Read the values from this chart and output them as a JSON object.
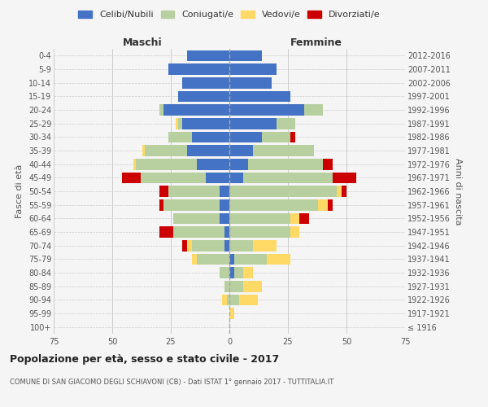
{
  "age_groups": [
    "100+",
    "95-99",
    "90-94",
    "85-89",
    "80-84",
    "75-79",
    "70-74",
    "65-69",
    "60-64",
    "55-59",
    "50-54",
    "45-49",
    "40-44",
    "35-39",
    "30-34",
    "25-29",
    "20-24",
    "15-19",
    "10-14",
    "5-9",
    "0-4"
  ],
  "birth_years": [
    "≤ 1916",
    "1917-1921",
    "1922-1926",
    "1927-1931",
    "1932-1936",
    "1937-1941",
    "1942-1946",
    "1947-1951",
    "1952-1956",
    "1957-1961",
    "1962-1966",
    "1967-1971",
    "1972-1976",
    "1977-1981",
    "1982-1986",
    "1987-1991",
    "1992-1996",
    "1997-2001",
    "2002-2006",
    "2007-2011",
    "2012-2016"
  ],
  "males": {
    "celibi": [
      0,
      0,
      0,
      0,
      0,
      0,
      2,
      2,
      4,
      4,
      4,
      10,
      14,
      18,
      16,
      20,
      28,
      22,
      20,
      26,
      18
    ],
    "coniugati": [
      0,
      0,
      1,
      2,
      4,
      14,
      14,
      22,
      20,
      24,
      22,
      28,
      26,
      18,
      10,
      2,
      2,
      0,
      0,
      0,
      0
    ],
    "vedovi": [
      0,
      0,
      2,
      0,
      0,
      2,
      2,
      0,
      0,
      0,
      0,
      0,
      1,
      1,
      0,
      1,
      0,
      0,
      0,
      0,
      0
    ],
    "divorziati": [
      0,
      0,
      0,
      0,
      0,
      0,
      2,
      6,
      0,
      2,
      4,
      8,
      0,
      0,
      0,
      0,
      0,
      0,
      0,
      0,
      0
    ]
  },
  "females": {
    "nubili": [
      0,
      0,
      0,
      0,
      2,
      2,
      0,
      0,
      0,
      0,
      0,
      6,
      8,
      10,
      14,
      20,
      32,
      26,
      18,
      20,
      14
    ],
    "coniugate": [
      0,
      0,
      4,
      6,
      4,
      14,
      10,
      26,
      26,
      38,
      46,
      38,
      32,
      26,
      12,
      8,
      8,
      0,
      0,
      0,
      0
    ],
    "vedove": [
      0,
      2,
      8,
      8,
      4,
      10,
      10,
      4,
      4,
      4,
      2,
      0,
      0,
      0,
      0,
      0,
      0,
      0,
      0,
      0,
      0
    ],
    "divorziate": [
      0,
      0,
      0,
      0,
      0,
      0,
      0,
      0,
      4,
      2,
      2,
      10,
      4,
      0,
      2,
      0,
      0,
      0,
      0,
      0,
      0
    ]
  },
  "colors": {
    "celibi": "#4472c4",
    "coniugati": "#b8cfa0",
    "vedovi": "#ffd966",
    "divorziati": "#cc0000"
  },
  "title": "Popolazione per età, sesso e stato civile - 2017",
  "subtitle": "COMUNE DI SAN GIACOMO DEGLI SCHIAVONI (CB) - Dati ISTAT 1° gennaio 2017 - TUTTITALIA.IT",
  "xlabel_left": "Maschi",
  "xlabel_right": "Femmine",
  "ylabel_left": "Fasce di età",
  "ylabel_right": "Anni di nascita",
  "xlim": 75,
  "background_color": "#f5f5f5",
  "grid_color": "#cccccc"
}
